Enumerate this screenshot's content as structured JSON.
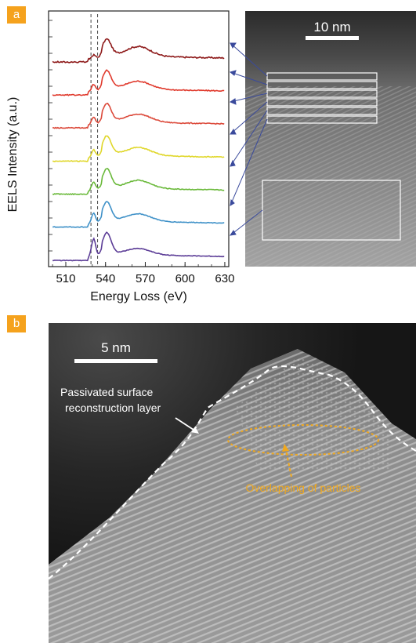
{
  "figure": {
    "panel_a_label": "a",
    "panel_b_label": "b"
  },
  "panel_a": {
    "scale_bar": "10 nm"
  },
  "panel_b": {
    "scale_bar": "5 nm",
    "annotation_surface_line1": "Passivated surface",
    "annotation_surface_line2": "reconstruction layer",
    "annotation_overlap": "Overlapping of particles"
  },
  "colors": {
    "tag": "#f5a21d",
    "annotation_orange": "#f0a81e",
    "arrow_blue": "#3a4a9c"
  },
  "chart_data": {
    "type": "line",
    "xlabel": "Energy Loss (eV)",
    "ylabel": "EELS Intensity (a.u.)",
    "xlim": [
      497,
      633
    ],
    "xticks": [
      510,
      540,
      570,
      600,
      630
    ],
    "reference_lines_x": [
      529,
      534
    ],
    "series": [
      {
        "color": "#8e1a1a",
        "offset": 7,
        "pre": 0.1,
        "peak1": 0.25,
        "peak2": 0.9,
        "post": 0.55,
        "noise": 0.08
      },
      {
        "color": "#e03a2d",
        "offset": 6,
        "pre": 0.1,
        "peak1": 0.45,
        "peak2": 1.0,
        "post": 0.45,
        "noise": 0.06
      },
      {
        "color": "#dc4a3b",
        "offset": 5,
        "pre": 0.1,
        "peak1": 0.45,
        "peak2": 1.0,
        "post": 0.45,
        "noise": 0.05
      },
      {
        "color": "#e0d72a",
        "offset": 4,
        "pre": 0.08,
        "peak1": 0.5,
        "peak2": 1.05,
        "post": 0.45,
        "noise": 0.05
      },
      {
        "color": "#6ab93a",
        "offset": 3,
        "pre": 0.08,
        "peak1": 0.55,
        "peak2": 1.05,
        "post": 0.45,
        "noise": 0.05
      },
      {
        "color": "#3f91c8",
        "offset": 2,
        "pre": 0.08,
        "peak1": 0.65,
        "peak2": 1.05,
        "post": 0.42,
        "noise": 0.04
      },
      {
        "color": "#5c3d97",
        "offset": 1,
        "pre": 0.05,
        "peak1": 1.1,
        "peak2": 1.2,
        "post": 0.35,
        "noise": 0.04
      }
    ]
  }
}
